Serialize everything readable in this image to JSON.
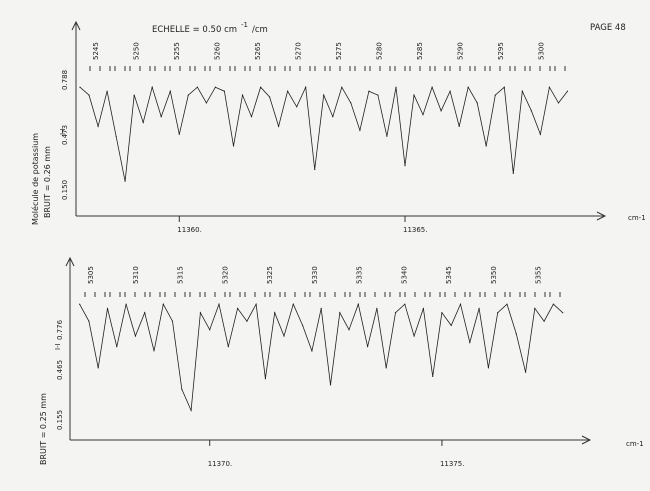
{
  "header": {
    "scale_label": "ECHELLE = 0.50 cm",
    "scale_sup": "-1",
    "scale_suffix": "/cm",
    "page_label": "PAGE 48"
  },
  "chart_data": [
    {
      "type": "line",
      "title": "",
      "xlabel": "cm-1",
      "ylabel_left": "Molécule de potassium",
      "ylabel_right": "BRUIT = 0.26 mm",
      "trace_label": "I-I",
      "y_ticks": [
        "0.150",
        "0.473",
        "0.788"
      ],
      "ylim": [
        0.15,
        0.788
      ],
      "x_ticks": [
        {
          "value": 11360,
          "label": "11360."
        },
        {
          "value": 11365,
          "label": "11365."
        }
      ],
      "xlim": [
        11357.8,
        11368.7
      ],
      "line_numbers": [
        "5245",
        "5250",
        "5255",
        "5260",
        "5265",
        "5270",
        "5275",
        "5280",
        "5285",
        "5290",
        "5295",
        "5300"
      ],
      "series": [
        {
          "x": [
            11357.8,
            11358.0,
            11358.2,
            11358.4,
            11358.6,
            11358.8,
            11359.0,
            11359.2,
            11359.4,
            11359.6,
            11359.8,
            11360.0,
            11360.2,
            11360.4,
            11360.6,
            11360.8,
            11361.0,
            11361.2,
            11361.4,
            11361.6,
            11361.8,
            11362.0,
            11362.2,
            11362.4,
            11362.6,
            11362.8,
            11363.0,
            11363.2,
            11363.4,
            11363.6,
            11363.8,
            11364.0,
            11364.2,
            11364.4,
            11364.6,
            11364.8,
            11365.0,
            11365.2,
            11365.4,
            11365.6,
            11365.8,
            11366.0,
            11366.2,
            11366.4,
            11366.6,
            11366.8,
            11367.0,
            11367.2,
            11367.4,
            11367.6,
            11367.8,
            11368.0,
            11368.2,
            11368.4,
            11368.6
          ],
          "values": [
            0.7,
            0.66,
            0.5,
            0.68,
            0.45,
            0.22,
            0.66,
            0.52,
            0.7,
            0.55,
            0.68,
            0.46,
            0.66,
            0.7,
            0.62,
            0.7,
            0.68,
            0.4,
            0.66,
            0.55,
            0.7,
            0.65,
            0.5,
            0.68,
            0.6,
            0.7,
            0.28,
            0.66,
            0.55,
            0.7,
            0.62,
            0.48,
            0.68,
            0.66,
            0.45,
            0.7,
            0.3,
            0.66,
            0.56,
            0.7,
            0.58,
            0.68,
            0.5,
            0.7,
            0.62,
            0.4,
            0.66,
            0.7,
            0.26,
            0.68,
            0.58,
            0.46,
            0.7,
            0.62,
            0.68
          ]
        }
      ]
    },
    {
      "type": "line",
      "title": "",
      "xlabel": "cm-1",
      "ylabel_right": "BRUIT = 0.25 mm",
      "trace_label": "I-I",
      "y_ticks": [
        "0.155",
        "0.465",
        "0.776"
      ],
      "ylim": [
        0.155,
        0.776
      ],
      "x_ticks": [
        {
          "value": 11370,
          "label": "11370."
        },
        {
          "value": 11375,
          "label": "11375."
        }
      ],
      "xlim": [
        11367.1,
        11377.8
      ],
      "line_numbers": [
        "5305",
        "5310",
        "5315",
        "5320",
        "5325",
        "5330",
        "5335",
        "5340",
        "5345",
        "5350",
        "5355"
      ],
      "series": [
        {
          "x": [
            11367.2,
            11367.4,
            11367.6,
            11367.8,
            11368.0,
            11368.2,
            11368.4,
            11368.6,
            11368.8,
            11369.0,
            11369.2,
            11369.4,
            11369.6,
            11369.8,
            11370.0,
            11370.2,
            11370.4,
            11370.6,
            11370.8,
            11371.0,
            11371.2,
            11371.4,
            11371.6,
            11371.8,
            11372.0,
            11372.2,
            11372.4,
            11372.6,
            11372.8,
            11373.0,
            11373.2,
            11373.4,
            11373.6,
            11373.8,
            11374.0,
            11374.2,
            11374.4,
            11374.6,
            11374.8,
            11375.0,
            11375.2,
            11375.4,
            11375.6,
            11375.8,
            11376.0,
            11376.2,
            11376.4,
            11376.6,
            11376.8,
            11377.0,
            11377.2,
            11377.4,
            11377.6
          ],
          "values": [
            0.7,
            0.62,
            0.4,
            0.68,
            0.5,
            0.7,
            0.55,
            0.66,
            0.48,
            0.7,
            0.62,
            0.3,
            0.2,
            0.66,
            0.58,
            0.7,
            0.5,
            0.68,
            0.62,
            0.7,
            0.35,
            0.66,
            0.55,
            0.7,
            0.6,
            0.48,
            0.68,
            0.32,
            0.66,
            0.58,
            0.7,
            0.5,
            0.68,
            0.4,
            0.66,
            0.7,
            0.55,
            0.68,
            0.36,
            0.66,
            0.6,
            0.7,
            0.52,
            0.68,
            0.4,
            0.66,
            0.7,
            0.56,
            0.38,
            0.68,
            0.62,
            0.7,
            0.66
          ]
        }
      ]
    }
  ]
}
